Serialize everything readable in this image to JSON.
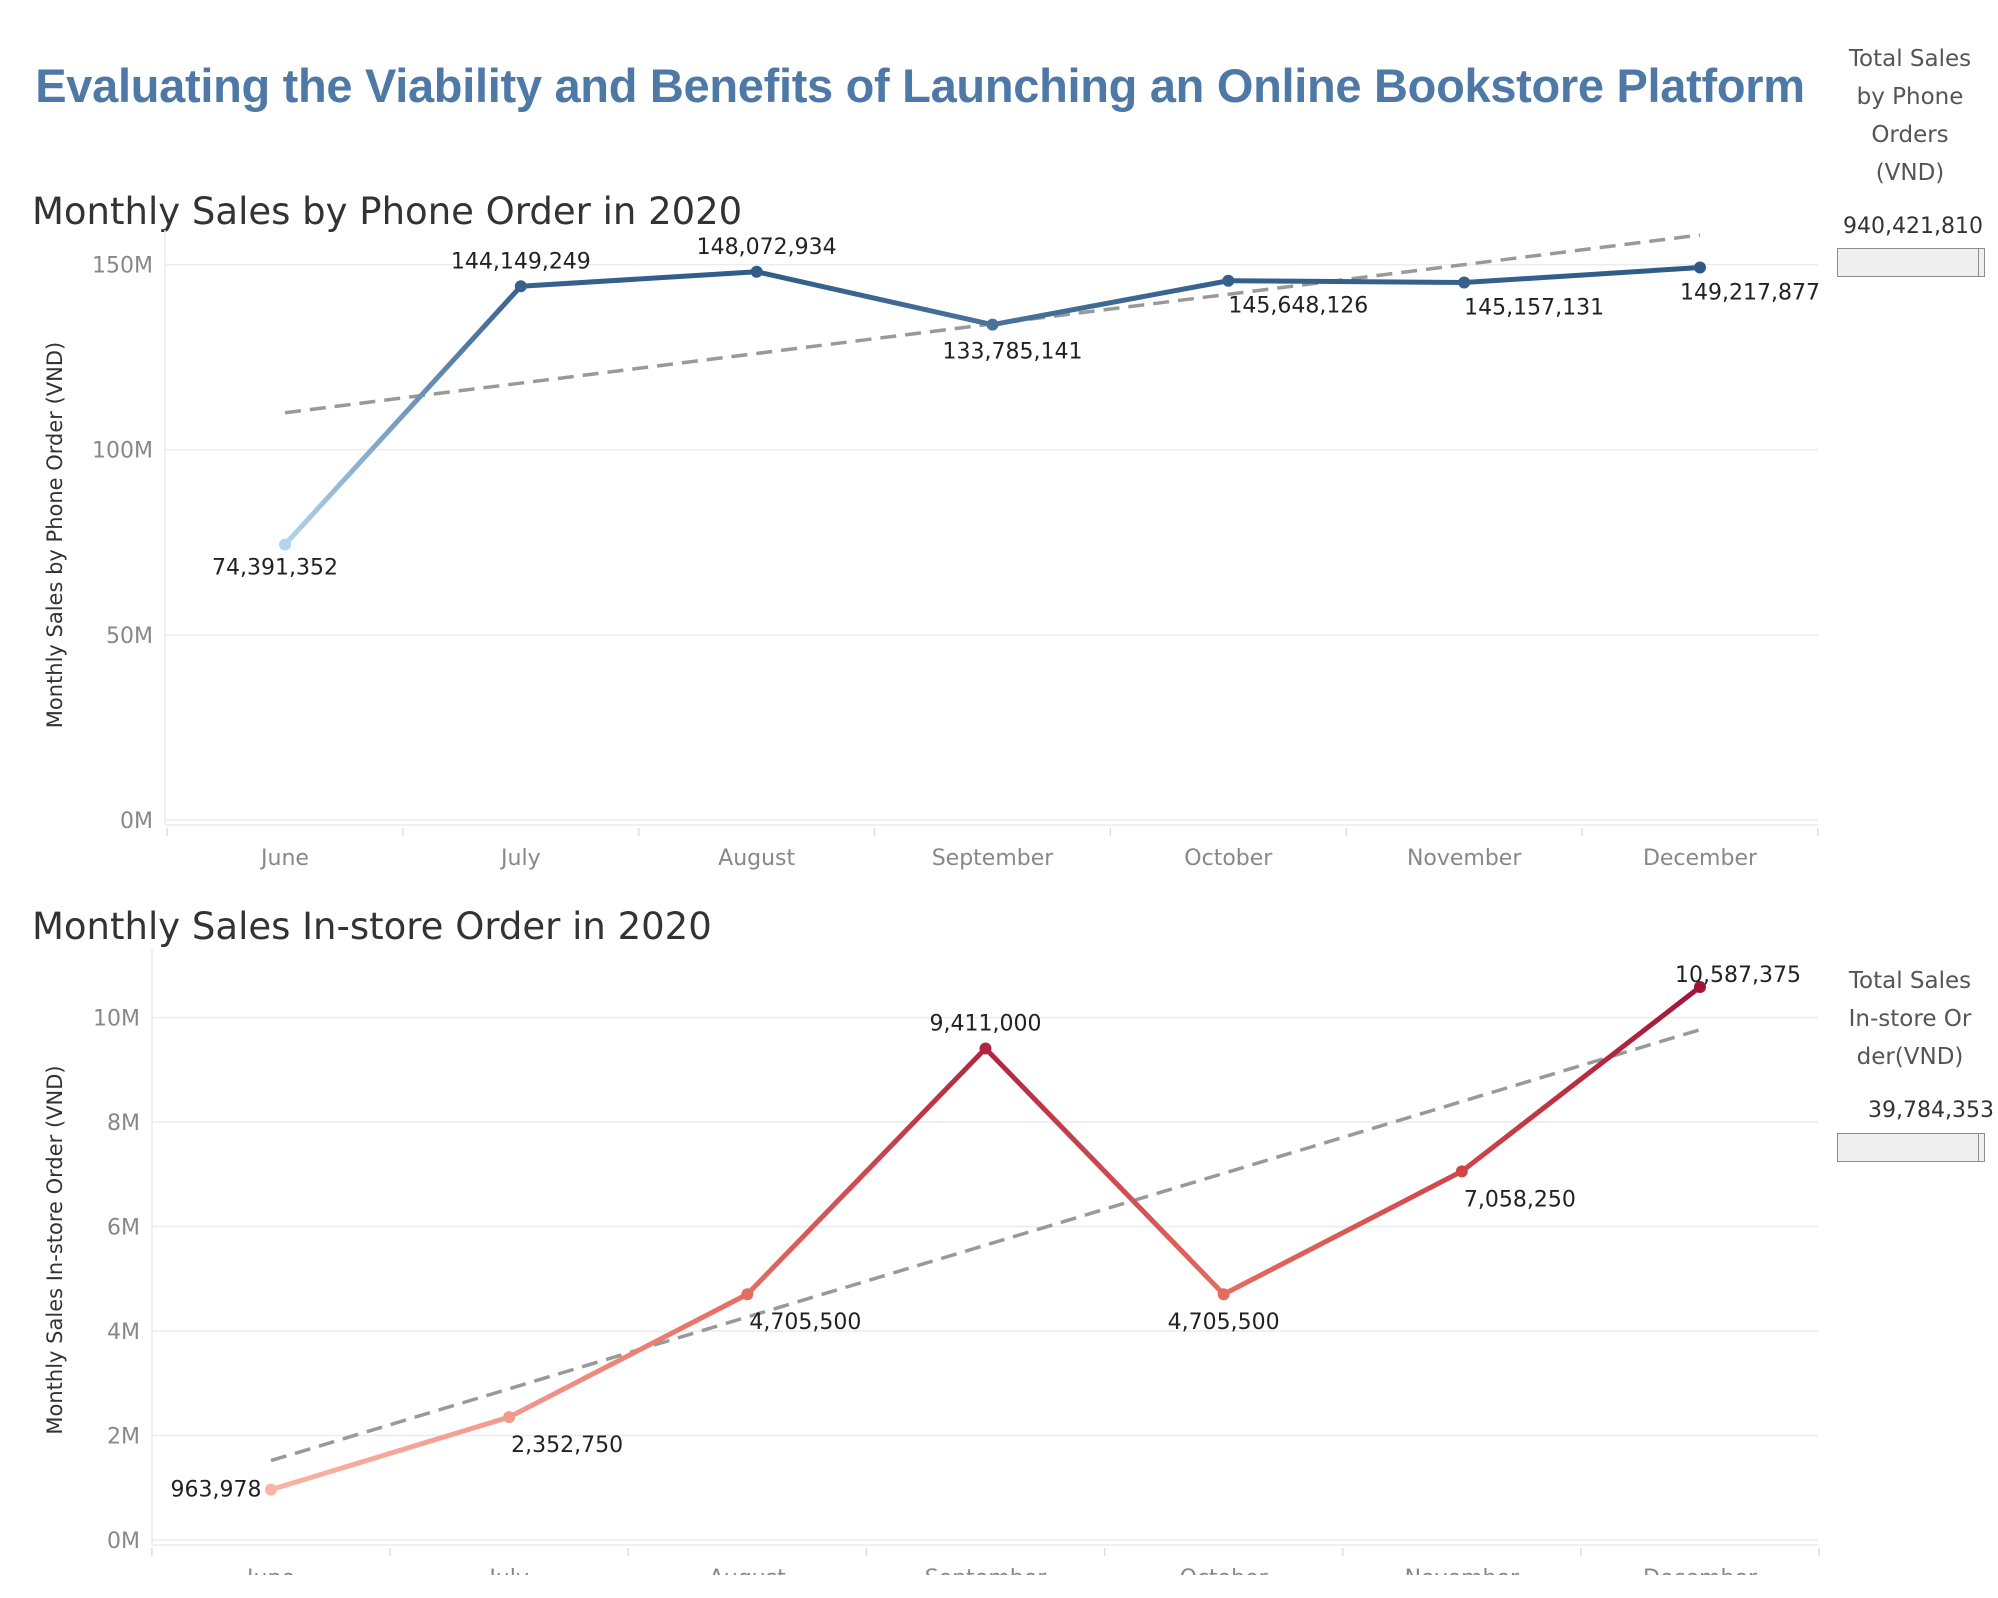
{
  "title": "Evaluating the Viability and Benefits of Launching an Online Bookstore Platform",
  "kpis": {
    "phone": {
      "title_lines": [
        "Total Sales",
        "by Phone",
        "Orders",
        "(VND)"
      ],
      "value": "940,421,810",
      "fill_fraction": 0.96
    },
    "store": {
      "title_lines": [
        "Total Sales",
        "In-store Or",
        "der(VND)"
      ],
      "value": "39,784,353",
      "fill_fraction": 0.96
    }
  },
  "chart_data": [
    {
      "id": "phone",
      "type": "line",
      "title": "Monthly Sales by Phone Order in 2020",
      "xlabel": "",
      "ylabel": "Monthly Sales by Phone Order (VND)",
      "categories": [
        "June",
        "July",
        "August",
        "September",
        "October",
        "November",
        "December"
      ],
      "series": [
        {
          "values": [
            74391352,
            144149249,
            148072934,
            133785141,
            145648126,
            145157131,
            149217877
          ],
          "labels": [
            "74,391,352",
            "144,149,249",
            "148,072,934",
            "133,785,141",
            "145,648,126",
            "145,157,131",
            "149,217,877"
          ]
        }
      ],
      "trend_line": {
        "start": 110000000,
        "end": 158000000,
        "style": "dashed",
        "color": "#999999"
      },
      "ylim": [
        0,
        158000000
      ],
      "y_ticks": [
        0,
        50000000,
        100000000,
        150000000
      ],
      "y_tick_labels": [
        "0M",
        "50M",
        "100M",
        "150M"
      ],
      "grid": true,
      "color_scale": [
        "#b3d4ea",
        "#2e5a87"
      ]
    },
    {
      "id": "store",
      "type": "line",
      "title": "Monthly Sales In-store Order in 2020",
      "xlabel": "",
      "ylabel": "Monthly Sales In-store Order (VND)",
      "categories": [
        "June",
        "July",
        "August",
        "September",
        "October",
        "November",
        "December"
      ],
      "series": [
        {
          "values": [
            963978,
            2352750,
            4705500,
            9411000,
            4705500,
            7058250,
            10587375
          ],
          "labels": [
            "963,978",
            "2,352,750",
            "4,705,500",
            "9,411,000",
            "4,705,500",
            "7,058,250",
            "10,587,375"
          ]
        }
      ],
      "trend_line": {
        "start": 1520000,
        "end": 9770000,
        "style": "dashed",
        "color": "#999999"
      },
      "ylim": [
        0,
        11200000
      ],
      "y_ticks": [
        0,
        2000000,
        4000000,
        6000000,
        8000000,
        10000000
      ],
      "y_tick_labels": [
        "0M",
        "2M",
        "4M",
        "6M",
        "8M",
        "10M"
      ],
      "grid": true,
      "color_scale": [
        "#f9b4a6",
        "#e0584d",
        "#a0143a"
      ]
    }
  ]
}
